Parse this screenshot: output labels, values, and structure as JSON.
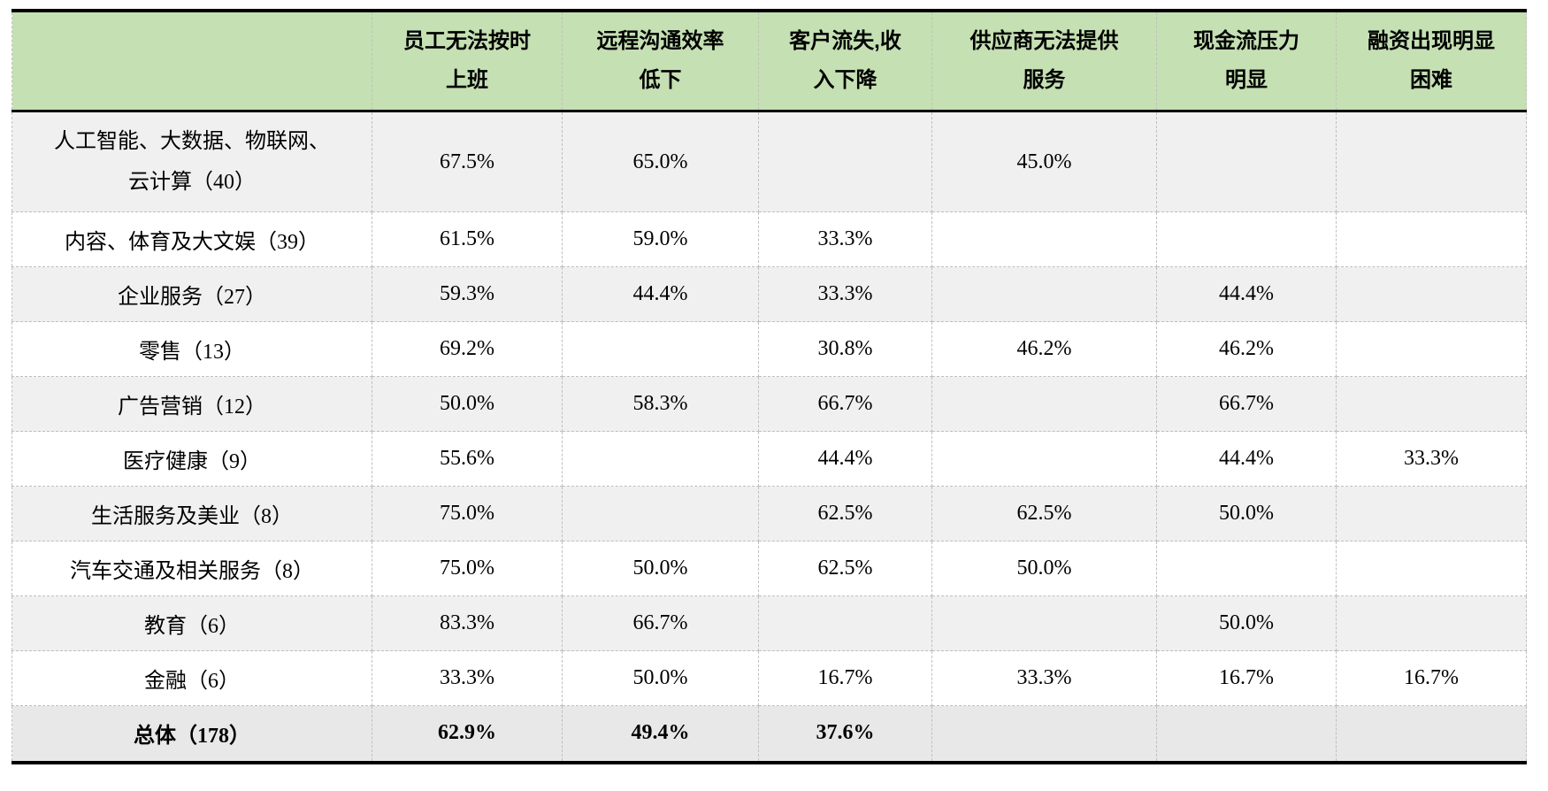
{
  "table": {
    "corner_label": "",
    "columns": [
      {
        "line1": "员工无法按时",
        "line2": "上班"
      },
      {
        "line1": "远程沟通效率",
        "line2": "低下"
      },
      {
        "line1": "客户流失,收",
        "line2": "入下降"
      },
      {
        "line1": "供应商无法提供",
        "line2": "服务"
      },
      {
        "line1": "现金流压力",
        "line2": "明显"
      },
      {
        "line1": "融资出现明显",
        "line2": "困难"
      }
    ],
    "rows": [
      {
        "label_line1": "人工智能、大数据、物联网、",
        "label_line2": "云计算（40）",
        "values": [
          "67.5%",
          "65.0%",
          "",
          "45.0%",
          "",
          ""
        ]
      },
      {
        "label": "内容、体育及大文娱（39）",
        "values": [
          "61.5%",
          "59.0%",
          "33.3%",
          "",
          "",
          ""
        ]
      },
      {
        "label": "企业服务（27）",
        "values": [
          "59.3%",
          "44.4%",
          "33.3%",
          "",
          "44.4%",
          ""
        ]
      },
      {
        "label": "零售（13）",
        "values": [
          "69.2%",
          "",
          "30.8%",
          "46.2%",
          "46.2%",
          ""
        ]
      },
      {
        "label": "广告营销（12）",
        "values": [
          "50.0%",
          "58.3%",
          "66.7%",
          "",
          "66.7%",
          ""
        ]
      },
      {
        "label": "医疗健康（9）",
        "values": [
          "55.6%",
          "",
          "44.4%",
          "",
          "44.4%",
          "33.3%"
        ]
      },
      {
        "label": "生活服务及美业（8）",
        "values": [
          "75.0%",
          "",
          "62.5%",
          "62.5%",
          "50.0%",
          ""
        ]
      },
      {
        "label": "汽车交通及相关服务（8）",
        "values": [
          "75.0%",
          "50.0%",
          "62.5%",
          "50.0%",
          "",
          ""
        ]
      },
      {
        "label": "教育（6）",
        "values": [
          "83.3%",
          "66.7%",
          "",
          "",
          "50.0%",
          ""
        ]
      },
      {
        "label": "金融（6）",
        "values": [
          "33.3%",
          "50.0%",
          "16.7%",
          "33.3%",
          "16.7%",
          "16.7%"
        ]
      }
    ],
    "total_row": {
      "label": "总体（178）",
      "values": [
        "62.9%",
        "49.4%",
        "37.6%",
        "",
        "",
        ""
      ]
    }
  },
  "colors": {
    "header_bg": "#c5e0b3",
    "stripe_bg": "#f0f0f0",
    "total_bg": "#e8e8e8",
    "dashed_border": "#bfbfbf",
    "solid_border": "#000000"
  }
}
